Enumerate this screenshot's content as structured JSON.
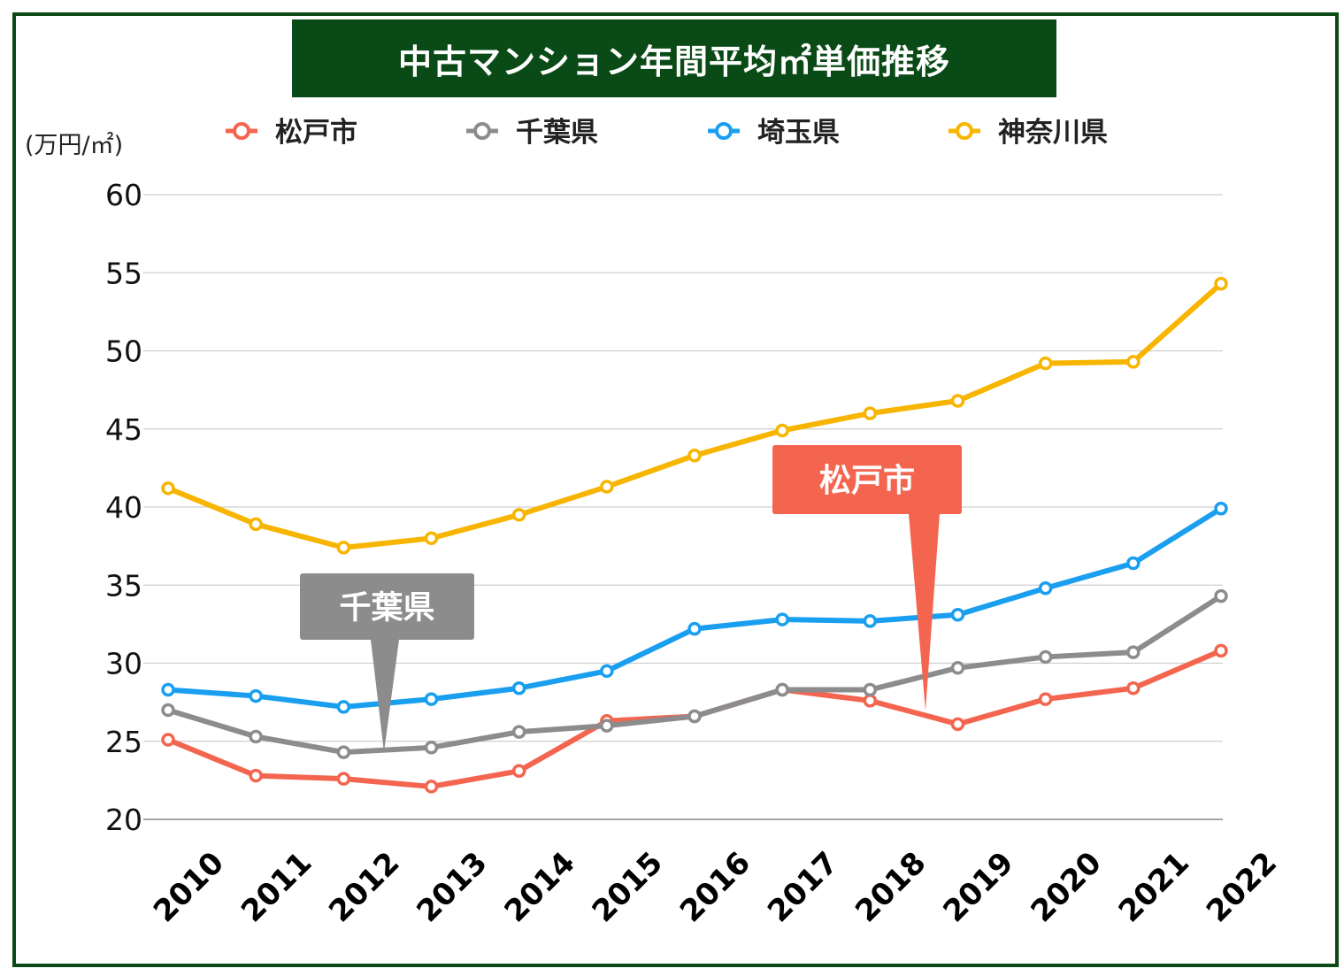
{
  "chart_data": {
    "type": "line",
    "title": "中古マンション年間平均㎡単価推移",
    "ylabel": "(万円/㎡)",
    "ylim": [
      20,
      60
    ],
    "yticks": [
      20,
      25,
      30,
      35,
      40,
      45,
      50,
      55,
      60
    ],
    "grid": true,
    "legend_position": "top",
    "categories": [
      "2010",
      "2011",
      "2012",
      "2013",
      "2014",
      "2015",
      "2016",
      "2017",
      "2018",
      "2019",
      "2020",
      "2021",
      "2022"
    ],
    "series": [
      {
        "name": "松戸市",
        "color": "#f4654f",
        "values": [
          25.1,
          22.8,
          22.6,
          22.1,
          23.1,
          26.3,
          26.6,
          28.3,
          27.6,
          26.1,
          27.7,
          28.4,
          30.8
        ]
      },
      {
        "name": "千葉県",
        "color": "#8c8c8c",
        "values": [
          27.0,
          25.3,
          24.3,
          24.6,
          25.6,
          26.0,
          26.6,
          28.3,
          28.3,
          29.7,
          30.4,
          30.7,
          34.3
        ]
      },
      {
        "name": "埼玉県",
        "color": "#1a9ff0",
        "values": [
          28.3,
          27.9,
          27.2,
          27.7,
          28.4,
          29.5,
          32.2,
          32.8,
          32.7,
          33.1,
          34.8,
          36.4,
          39.9
        ]
      },
      {
        "name": "神奈川県",
        "color": "#f7b500",
        "values": [
          41.2,
          38.9,
          37.4,
          38.0,
          39.5,
          41.3,
          43.3,
          44.9,
          46.0,
          46.8,
          49.2,
          49.3,
          54.3
        ]
      }
    ],
    "annotations": [
      {
        "text": "千葉県",
        "color": "#8c8c8c"
      },
      {
        "text": "松戸市",
        "color": "#f4654f"
      }
    ]
  }
}
